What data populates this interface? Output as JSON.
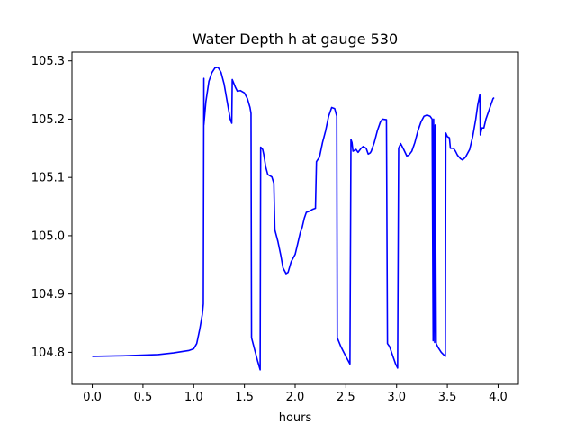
{
  "chart_data": {
    "type": "line",
    "title": "Water Depth h at gauge 530",
    "xlabel": "hours",
    "ylabel": "",
    "xlim": [
      -0.2,
      4.2
    ],
    "ylim": [
      104.745,
      105.315
    ],
    "xticks": [
      0.0,
      0.5,
      1.0,
      1.5,
      2.0,
      2.5,
      3.0,
      3.5,
      4.0
    ],
    "xtick_labels": [
      "0.0",
      "0.5",
      "1.0",
      "1.5",
      "2.0",
      "2.5",
      "3.0",
      "3.5",
      "4.0"
    ],
    "yticks": [
      104.8,
      104.9,
      105.0,
      105.1,
      105.2,
      105.3
    ],
    "ytick_labels": [
      "104.8",
      "104.9",
      "105.0",
      "105.1",
      "105.2",
      "105.3"
    ],
    "grid": false,
    "legend": "none",
    "series": [
      {
        "color": "#0000ff",
        "points": [
          [
            0.0,
            104.793
          ],
          [
            0.3,
            104.794
          ],
          [
            0.65,
            104.796
          ],
          [
            0.8,
            104.799
          ],
          [
            0.95,
            104.803
          ],
          [
            1.0,
            104.806
          ],
          [
            1.03,
            104.815
          ],
          [
            1.06,
            104.84
          ],
          [
            1.085,
            104.865
          ],
          [
            1.095,
            104.883
          ],
          [
            1.1,
            105.27
          ],
          [
            1.1,
            105.19
          ],
          [
            1.12,
            105.23
          ],
          [
            1.15,
            105.265
          ],
          [
            1.18,
            105.28
          ],
          [
            1.21,
            105.288
          ],
          [
            1.24,
            105.289
          ],
          [
            1.27,
            105.28
          ],
          [
            1.3,
            105.26
          ],
          [
            1.33,
            105.23
          ],
          [
            1.36,
            105.2
          ],
          [
            1.375,
            105.193
          ],
          [
            1.38,
            105.268
          ],
          [
            1.41,
            105.255
          ],
          [
            1.43,
            105.248
          ],
          [
            1.46,
            105.249
          ],
          [
            1.5,
            105.245
          ],
          [
            1.53,
            105.235
          ],
          [
            1.555,
            105.22
          ],
          [
            1.565,
            105.21
          ],
          [
            1.57,
            104.825
          ],
          [
            1.6,
            104.805
          ],
          [
            1.63,
            104.785
          ],
          [
            1.655,
            104.77
          ],
          [
            1.66,
            105.152
          ],
          [
            1.68,
            105.148
          ],
          [
            1.69,
            105.14
          ],
          [
            1.71,
            105.118
          ],
          [
            1.73,
            105.105
          ],
          [
            1.77,
            105.101
          ],
          [
            1.79,
            105.09
          ],
          [
            1.8,
            105.01
          ],
          [
            1.83,
            104.99
          ],
          [
            1.86,
            104.965
          ],
          [
            1.88,
            104.945
          ],
          [
            1.91,
            104.935
          ],
          [
            1.93,
            104.937
          ],
          [
            1.96,
            104.955
          ],
          [
            2.0,
            104.968
          ],
          [
            2.03,
            104.99
          ],
          [
            2.05,
            105.005
          ],
          [
            2.07,
            105.015
          ],
          [
            2.09,
            105.03
          ],
          [
            2.11,
            105.04
          ],
          [
            2.14,
            105.042
          ],
          [
            2.17,
            105.045
          ],
          [
            2.2,
            105.047
          ],
          [
            2.21,
            105.127
          ],
          [
            2.24,
            105.135
          ],
          [
            2.27,
            105.16
          ],
          [
            2.3,
            105.18
          ],
          [
            2.33,
            105.205
          ],
          [
            2.36,
            105.22
          ],
          [
            2.39,
            105.218
          ],
          [
            2.41,
            105.205
          ],
          [
            2.415,
            104.825
          ],
          [
            2.45,
            104.81
          ],
          [
            2.5,
            104.793
          ],
          [
            2.54,
            104.78
          ],
          [
            2.55,
            105.165
          ],
          [
            2.56,
            105.16
          ],
          [
            2.57,
            105.145
          ],
          [
            2.6,
            105.148
          ],
          [
            2.62,
            105.143
          ],
          [
            2.65,
            105.15
          ],
          [
            2.67,
            105.153
          ],
          [
            2.7,
            105.15
          ],
          [
            2.72,
            105.14
          ],
          [
            2.74,
            105.142
          ],
          [
            2.75,
            105.145
          ],
          [
            2.78,
            105.16
          ],
          [
            2.81,
            105.18
          ],
          [
            2.84,
            105.195
          ],
          [
            2.86,
            105.2
          ],
          [
            2.9,
            105.199
          ],
          [
            2.91,
            104.815
          ],
          [
            2.93,
            104.81
          ],
          [
            2.96,
            104.795
          ],
          [
            2.99,
            104.78
          ],
          [
            3.01,
            104.773
          ],
          [
            3.02,
            105.15
          ],
          [
            3.04,
            105.158
          ],
          [
            3.07,
            105.148
          ],
          [
            3.1,
            105.137
          ],
          [
            3.12,
            105.138
          ],
          [
            3.15,
            105.145
          ],
          [
            3.18,
            105.16
          ],
          [
            3.21,
            105.18
          ],
          [
            3.24,
            105.195
          ],
          [
            3.27,
            105.205
          ],
          [
            3.3,
            105.207
          ],
          [
            3.33,
            105.205
          ],
          [
            3.35,
            105.2
          ],
          [
            3.36,
            104.82
          ],
          [
            3.365,
            105.2
          ],
          [
            3.375,
            104.817
          ],
          [
            3.38,
            105.19
          ],
          [
            3.39,
            104.815
          ],
          [
            3.41,
            104.808
          ],
          [
            3.44,
            104.8
          ],
          [
            3.48,
            104.793
          ],
          [
            3.485,
            105.176
          ],
          [
            3.5,
            105.17
          ],
          [
            3.52,
            105.168
          ],
          [
            3.53,
            105.15
          ],
          [
            3.56,
            105.15
          ],
          [
            3.58,
            105.145
          ],
          [
            3.6,
            105.138
          ],
          [
            3.63,
            105.132
          ],
          [
            3.65,
            105.13
          ],
          [
            3.68,
            105.135
          ],
          [
            3.72,
            105.148
          ],
          [
            3.75,
            105.17
          ],
          [
            3.78,
            105.2
          ],
          [
            3.8,
            105.225
          ],
          [
            3.82,
            105.242
          ],
          [
            3.825,
            105.173
          ],
          [
            3.84,
            105.185
          ],
          [
            3.86,
            105.185
          ],
          [
            3.88,
            105.2
          ],
          [
            3.91,
            105.215
          ],
          [
            3.93,
            105.225
          ],
          [
            3.95,
            105.235
          ],
          [
            3.96,
            105.237
          ]
        ]
      }
    ]
  }
}
